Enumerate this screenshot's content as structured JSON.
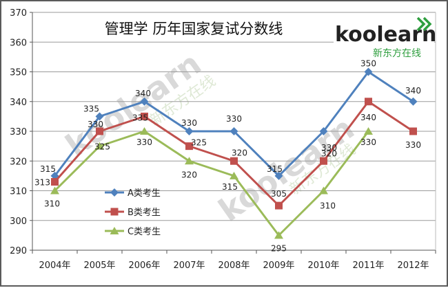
{
  "colors": {
    "series_a": "#4f81bd",
    "series_b": "#c0504d",
    "series_c": "#9bbb59",
    "grid": "#9a9a9a",
    "logo_green": "#2e9e3e"
  },
  "logo": {
    "wordmark": "koolearn",
    "subtitle": "新东方在线"
  },
  "watermark": {
    "wordmark": "koolearn",
    "subtitle": "新东方在线"
  },
  "chart_data": {
    "type": "line",
    "title": "管理学  历年国家复试分数线",
    "categories": [
      "2004年",
      "2005年",
      "2006年",
      "2007年",
      "2008年",
      "2009年",
      "2010年",
      "2011年",
      "2012年"
    ],
    "ylim": [
      290,
      370
    ],
    "yticks": [
      290,
      300,
      310,
      320,
      330,
      340,
      350,
      360,
      370
    ],
    "grid": true,
    "legend_position": "left",
    "series": [
      {
        "name": "A类考生",
        "marker": "diamond",
        "values": [
          315,
          335,
          340,
          330,
          330,
          315,
          330,
          350,
          340
        ]
      },
      {
        "name": "B类考生",
        "marker": "square",
        "values": [
          313,
          330,
          335,
          325,
          320,
          305,
          320,
          340,
          330
        ]
      },
      {
        "name": "C类考生",
        "marker": "triangle",
        "values": [
          310,
          325,
          330,
          320,
          315,
          295,
          310,
          330,
          null
        ]
      }
    ]
  }
}
